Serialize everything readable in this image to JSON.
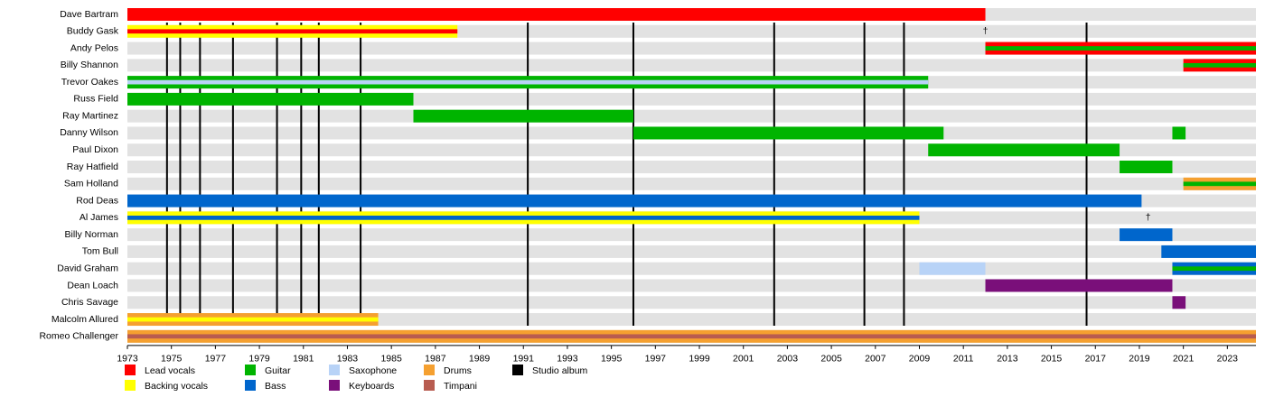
{
  "chart_data": {
    "type": "timeline",
    "xlim": [
      1973,
      2024.3
    ],
    "xticks": [
      1973,
      1975,
      1977,
      1979,
      1981,
      1983,
      1985,
      1987,
      1989,
      1991,
      1993,
      1995,
      1997,
      1999,
      2001,
      2003,
      2005,
      2007,
      2009,
      2011,
      2013,
      2015,
      2017,
      2019,
      2021,
      2023
    ],
    "roles": [
      {
        "name": "Lead vocals",
        "color": "#ff0000"
      },
      {
        "name": "Backing vocals",
        "color": "#ffff00"
      },
      {
        "name": "Guitar",
        "color": "#00b400"
      },
      {
        "name": "Bass",
        "color": "#0066cc"
      },
      {
        "name": "Saxophone",
        "color": "#b8d3f7"
      },
      {
        "name": "Keyboards",
        "color": "#7a0f7a"
      },
      {
        "name": "Drums",
        "color": "#f5a030"
      },
      {
        "name": "Timpani",
        "color": "#b85c50"
      }
    ],
    "album_label": "Studio album",
    "album_color": "#000000",
    "albums": [
      1974.8,
      1975.4,
      1976.3,
      1977.8,
      1979.8,
      1980.9,
      1981.7,
      1983.6,
      1991.2,
      1996.0,
      2002.4,
      2006.5,
      2008.3,
      2016.6
    ],
    "members": [
      {
        "name": "Dave Bartram",
        "bars": [
          {
            "start": 1973,
            "end": 2012.0,
            "roles": [
              0
            ]
          }
        ]
      },
      {
        "name": "Buddy Gask",
        "bars": [
          {
            "start": 1973,
            "end": 1988.0,
            "roles": [
              1,
              0
            ]
          }
        ]
      },
      {
        "name": "Andy Pelos",
        "bars": [
          {
            "start": 2012.0,
            "end": 2024.3,
            "roles": [
              0,
              2
            ]
          }
        ]
      },
      {
        "name": "Billy Shannon",
        "bars": [
          {
            "start": 2021.0,
            "end": 2024.3,
            "roles": [
              0,
              2
            ]
          }
        ]
      },
      {
        "name": "Trevor Oakes",
        "bars": [
          {
            "start": 1973,
            "end": 2009.4,
            "roles": [
              2,
              4
            ]
          }
        ]
      },
      {
        "name": "Russ Field",
        "bars": [
          {
            "start": 1973,
            "end": 1986.0,
            "roles": [
              2
            ]
          }
        ]
      },
      {
        "name": "Ray Martinez",
        "bars": [
          {
            "start": 1986.0,
            "end": 1996.0,
            "roles": [
              2
            ]
          }
        ]
      },
      {
        "name": "Danny Wilson",
        "bars": [
          {
            "start": 1996.0,
            "end": 2010.1,
            "roles": [
              2
            ]
          },
          {
            "start": 2020.5,
            "end": 2021.1,
            "roles": [
              2
            ]
          }
        ]
      },
      {
        "name": "Paul Dixon",
        "bars": [
          {
            "start": 2009.4,
            "end": 2018.1,
            "roles": [
              2
            ]
          }
        ]
      },
      {
        "name": "Ray Hatfield",
        "bars": [
          {
            "start": 2018.1,
            "end": 2020.5,
            "roles": [
              2
            ]
          }
        ]
      },
      {
        "name": "Sam Holland",
        "bars": [
          {
            "start": 2021.0,
            "end": 2024.3,
            "roles": [
              6,
              2
            ]
          }
        ]
      },
      {
        "name": "Rod Deas",
        "bars": [
          {
            "start": 1973,
            "end": 2019.1,
            "roles": [
              3
            ]
          }
        ]
      },
      {
        "name": "Al James",
        "bars": [
          {
            "start": 1973,
            "end": 2009.0,
            "roles": [
              1,
              3
            ]
          }
        ]
      },
      {
        "name": "Billy Norman",
        "bars": [
          {
            "start": 2018.1,
            "end": 2020.5,
            "roles": [
              3
            ]
          }
        ]
      },
      {
        "name": "Tom Bull",
        "bars": [
          {
            "start": 2020.0,
            "end": 2024.3,
            "roles": [
              3
            ]
          }
        ]
      },
      {
        "name": "David Graham",
        "bars": [
          {
            "start": 2009.0,
            "end": 2012.0,
            "roles": [
              4
            ]
          },
          {
            "start": 2020.5,
            "end": 2024.3,
            "roles": [
              3,
              2
            ]
          }
        ]
      },
      {
        "name": "Dean Loach",
        "bars": [
          {
            "start": 2012.0,
            "end": 2020.5,
            "roles": [
              5
            ]
          }
        ]
      },
      {
        "name": "Chris Savage",
        "bars": [
          {
            "start": 2020.5,
            "end": 2021.1,
            "roles": [
              5
            ]
          }
        ]
      },
      {
        "name": "Malcolm Allured",
        "bars": [
          {
            "start": 1973,
            "end": 1984.4,
            "roles": [
              6,
              1
            ]
          }
        ]
      },
      {
        "name": "Romeo Challenger",
        "bars": [
          {
            "start": 1973,
            "end": 2024.3,
            "roles": [
              6,
              7
            ]
          }
        ]
      }
    ],
    "annotations": [
      {
        "member": 1,
        "x": 2012.0,
        "text": "†"
      },
      {
        "member": 12,
        "x": 2019.4,
        "text": "†"
      }
    ]
  }
}
